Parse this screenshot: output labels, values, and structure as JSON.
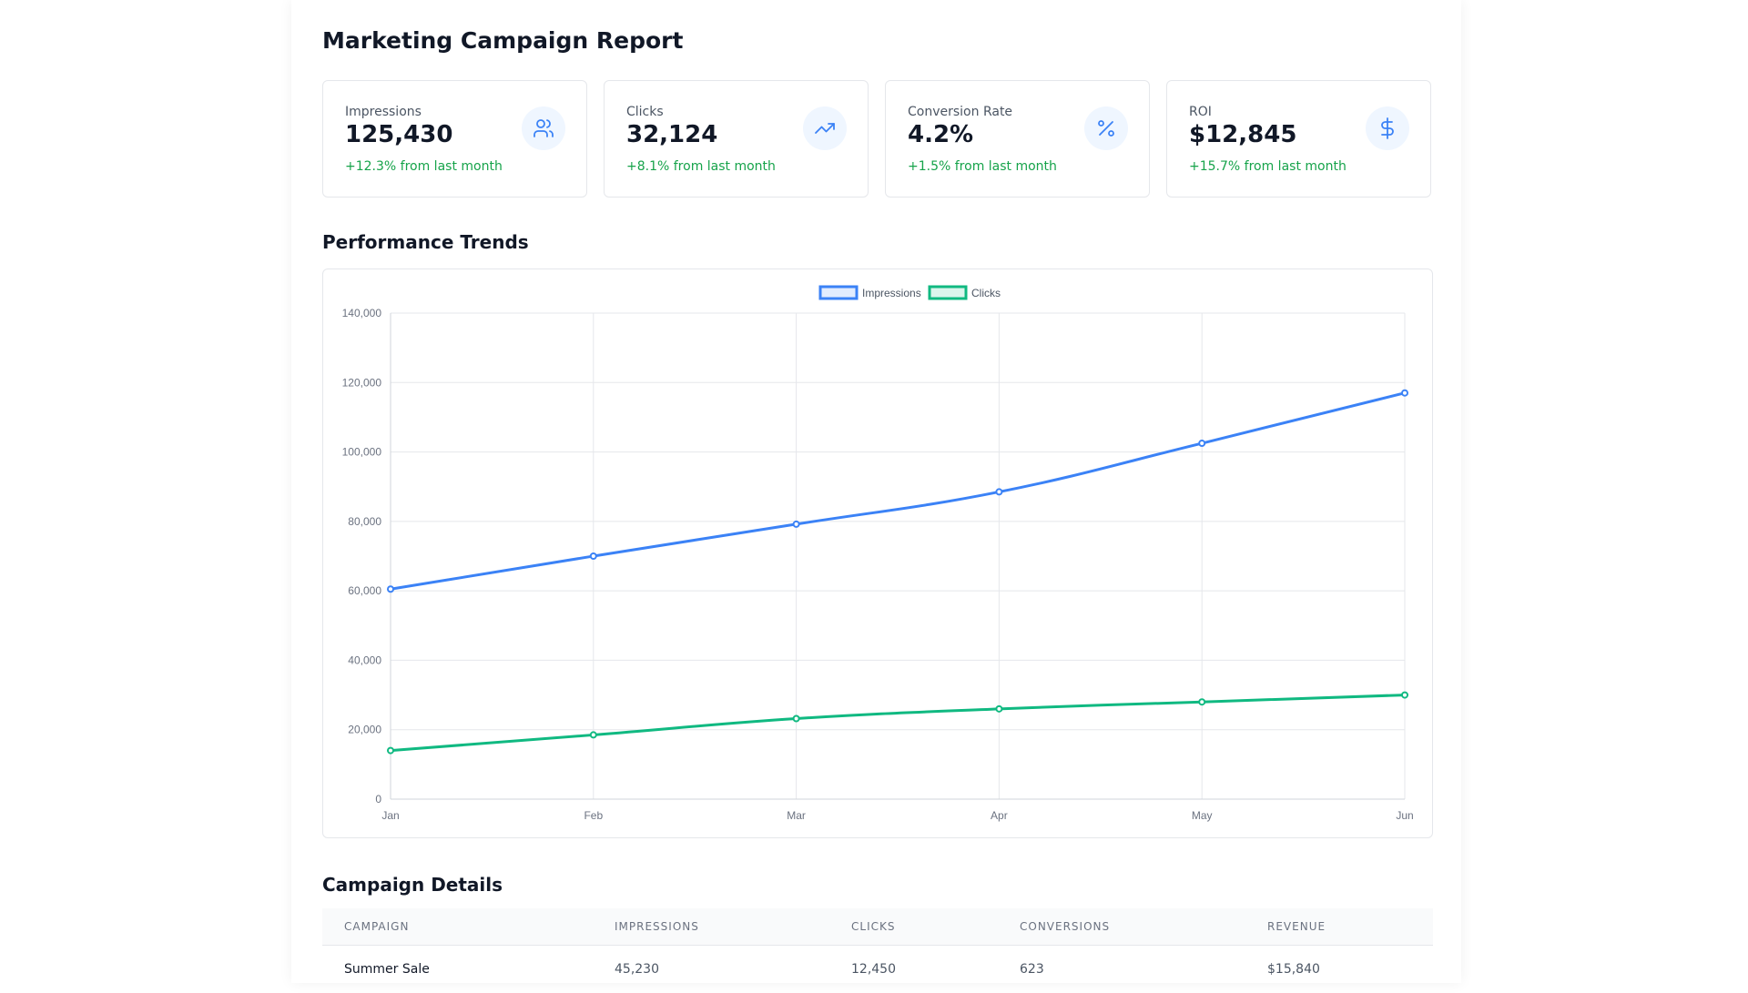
{
  "page": {
    "title": "Marketing Campaign Report"
  },
  "cards": [
    {
      "label": "Impressions",
      "value": "125,430",
      "change": "+12.3% from last month",
      "icon": "users-icon"
    },
    {
      "label": "Clicks",
      "value": "32,124",
      "change": "+8.1% from last month",
      "icon": "trending-up-icon"
    },
    {
      "label": "Conversion Rate",
      "value": "4.2%",
      "change": "+1.5% from last month",
      "icon": "percent-icon"
    },
    {
      "label": "ROI",
      "value": "$12,845",
      "change": "+15.7% from last month",
      "icon": "dollar-sign-icon"
    }
  ],
  "colors": {
    "accent": "#3b82f6",
    "secondary": "#10b981",
    "positive": "#16a34a",
    "icon_bg": "#eff6ff"
  },
  "sections": {
    "trends_title": "Performance Trends",
    "details_title": "Campaign Details"
  },
  "chart_data": {
    "type": "line",
    "categories": [
      "Jan",
      "Feb",
      "Mar",
      "Apr",
      "May",
      "Jun"
    ],
    "series": [
      {
        "name": "Impressions",
        "color": "#3b82f6",
        "values": [
          60500,
          70000,
          79200,
          88500,
          102500,
          117000
        ]
      },
      {
        "name": "Clicks",
        "color": "#10b981",
        "values": [
          14000,
          18500,
          23200,
          26000,
          28000,
          30000
        ]
      }
    ],
    "ylim": [
      0,
      140000
    ],
    "yticks": [
      0,
      20000,
      40000,
      60000,
      80000,
      100000,
      120000,
      140000
    ],
    "ytick_labels": [
      "0",
      "20,000",
      "40,000",
      "60,000",
      "80,000",
      "100,000",
      "120,000",
      "140,000"
    ],
    "grid": true,
    "legend_position": "top-center",
    "title": "",
    "xlabel": "",
    "ylabel": ""
  },
  "table": {
    "headers": [
      "CAMPAIGN",
      "IMPRESSIONS",
      "CLICKS",
      "CONVERSIONS",
      "REVENUE"
    ],
    "rows": [
      [
        "Summer Sale",
        "45,230",
        "12,450",
        "623",
        "$15,840"
      ]
    ]
  }
}
